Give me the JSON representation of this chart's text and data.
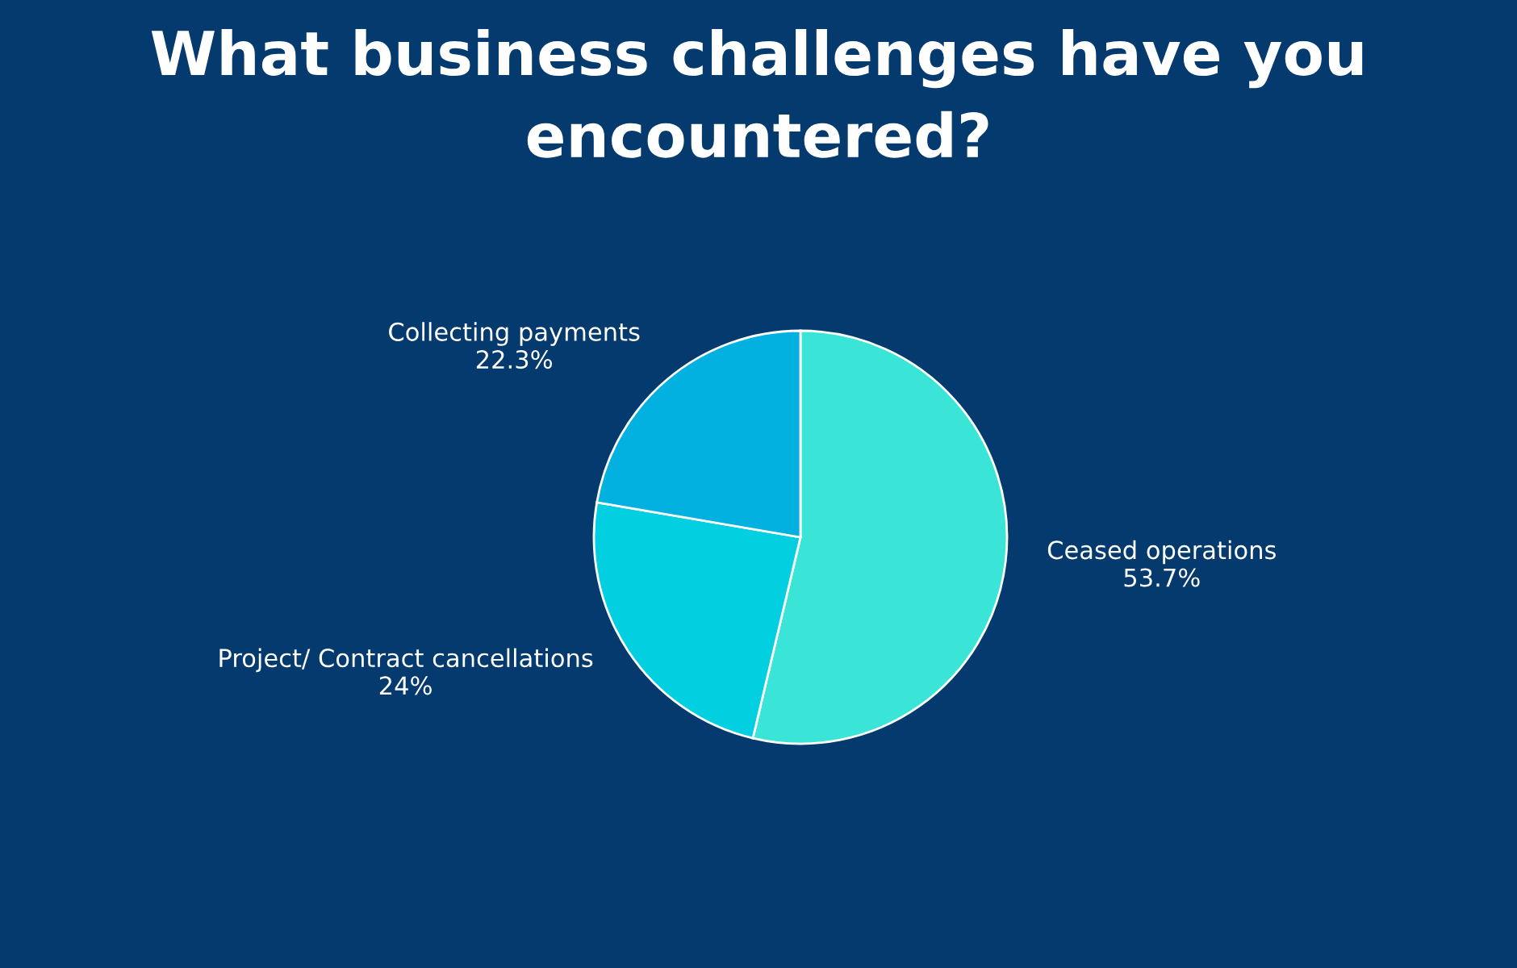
{
  "chart_data": {
    "type": "pie",
    "title": "What business challenges have you encountered?",
    "categories": [
      "Ceased operations",
      "Project/ Contract cancellations",
      "Collecting payments"
    ],
    "values": [
      53.7,
      24,
      22.3
    ],
    "value_labels": [
      "53.7%",
      "24%",
      "22.3%"
    ],
    "colors": [
      "#3ae4d6",
      "#02cfe0",
      "#02b1e0"
    ],
    "legend": false
  }
}
